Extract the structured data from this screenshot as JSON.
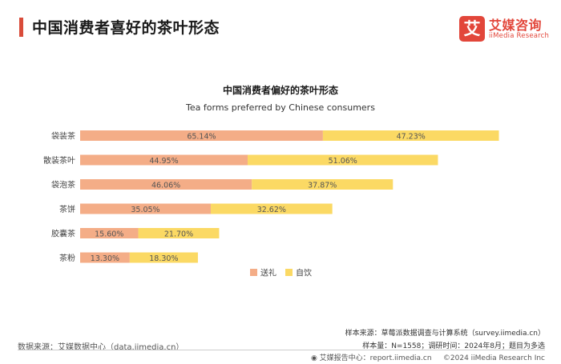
{
  "header": {
    "title": "中国消费者喜好的茶叶形态",
    "accent_color": "#d94c3a"
  },
  "logo": {
    "glyph": "艾",
    "name_cn": "艾媒咨询",
    "name_en": "iiMedia Research",
    "color": "#e2463a"
  },
  "chart_data": {
    "type": "bar",
    "orientation": "horizontal",
    "stacked": true,
    "title": "中国消费者偏好的茶叶形态",
    "subtitle": "Tea forms preferred by Chinese consumers",
    "categories": [
      "袋装茶",
      "散装茶叶",
      "袋泡茶",
      "茶饼",
      "胶囊茶",
      "茶粉"
    ],
    "series": [
      {
        "name": "送礼",
        "color": "#f4ad87",
        "values": [
          65.14,
          44.95,
          46.06,
          35.05,
          15.6,
          13.3
        ],
        "labels": [
          "65.14%",
          "44.95%",
          "46.06%",
          "35.05%",
          "15.60%",
          "13.30%"
        ]
      },
      {
        "name": "自饮",
        "color": "#fbd964",
        "values": [
          47.23,
          51.06,
          37.87,
          32.62,
          21.7,
          18.3
        ],
        "labels": [
          "47.23%",
          "51.06%",
          "37.87%",
          "32.62%",
          "21.70%",
          "18.30%"
        ]
      }
    ],
    "xlim": [
      0,
      120
    ],
    "grid": false,
    "legend_position": "bottom"
  },
  "footer": {
    "data_source": "数据来源：艾媒数据中心（data.iimedia.cn）",
    "sample_source": "样本来源：草莓派数据调查与计算系统（survey.iimedia.cn）",
    "sample_info": "样本量：N=1558；调研时间：2024年8月；题目为多选",
    "report_center": "艾媒报告中心：report.iimedia.cn",
    "copyright": "©2024  iiMedia Research  Inc"
  }
}
